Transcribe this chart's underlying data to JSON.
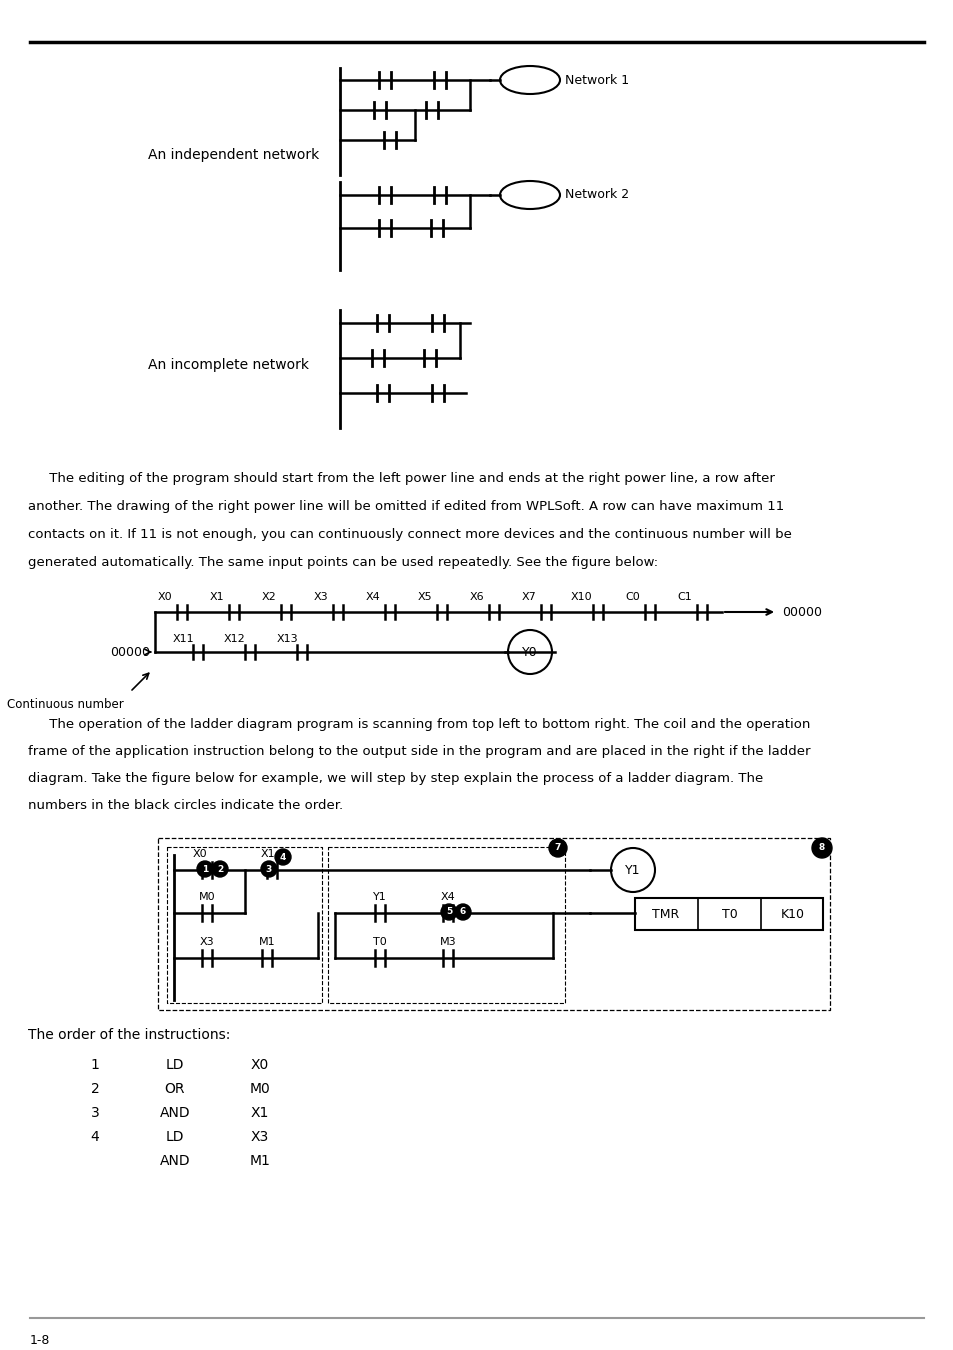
{
  "bg_color": "#ffffff",
  "page_num": "1-8",
  "label_indep": "An independent network",
  "label_incomp": "An incomplete network",
  "net1_label": "Network 1",
  "net2_label": "Network 2",
  "cont_num_label": "Continuous number",
  "para1_lines": [
    "     The editing of the program should start from the left power line and ends at the right power line, a row after",
    "another. The drawing of the right power line will be omitted if edited from WPLSoft. A row can have maximum 11",
    "contacts on it. If 11 is not enough, you can continuously connect more devices and the continuous number will be",
    "generated automatically. The same input points can be used repeatedly. See the figure below:"
  ],
  "para2_lines": [
    "     The operation of the ladder diagram program is scanning from top left to bottom right. The coil and the operation",
    "frame of the application instruction belong to the output side in the program and are placed in the right if the ladder",
    "diagram. Take the figure below for example, we will step by step explain the process of a ladder diagram. The",
    "numbers in the black circles indicate the order."
  ],
  "order_title": "The order of the instructions:",
  "instructions": [
    [
      "1",
      "LD",
      "X0"
    ],
    [
      "2",
      "OR",
      "M0"
    ],
    [
      "3",
      "AND",
      "X1"
    ],
    [
      "4",
      "LD",
      "X3"
    ],
    [
      "",
      "AND",
      "M1"
    ]
  ],
  "contact_labels": [
    "X0",
    "X1",
    "X2",
    "X3",
    "X4",
    "X5",
    "X6",
    "X7",
    "X10",
    "C0",
    "C1"
  ],
  "cont2_labels": [
    "X11",
    "X12",
    "X13"
  ]
}
